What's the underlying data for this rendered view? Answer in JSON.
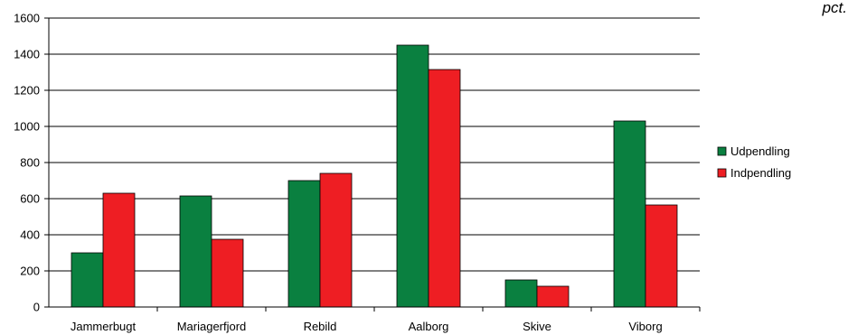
{
  "colors": {
    "udpendling": "#0a8040",
    "indpendling": "#ee1e23",
    "grid": "#000000",
    "axis": "#000000"
  },
  "unit_label": "pct.",
  "chart_data": {
    "type": "bar",
    "categories": [
      "Jammerbugt",
      "Mariagerfjord",
      "Rebild",
      "Aalborg",
      "Skive",
      "Viborg"
    ],
    "series": [
      {
        "name": "Udpendling",
        "values": [
          300,
          615,
          700,
          1450,
          150,
          1030
        ]
      },
      {
        "name": "Indpendling",
        "values": [
          630,
          375,
          740,
          1315,
          115,
          565
        ]
      }
    ],
    "yticks": [
      0,
      200,
      400,
      600,
      800,
      1000,
      1200,
      1400,
      1600
    ],
    "ylim": [
      0,
      1600
    ],
    "grid": true,
    "legend_position": "right"
  }
}
